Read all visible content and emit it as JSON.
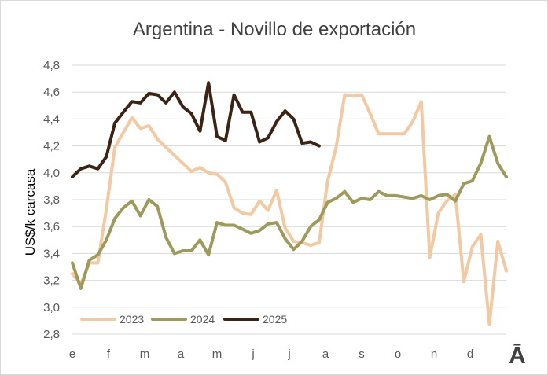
{
  "chart_data": {
    "type": "line",
    "title": "Argentina - Novillo de exportación",
    "ylabel": "US$/k carcasa",
    "xlabel": "",
    "ylim": [
      2.8,
      4.8
    ],
    "yticks": [
      "2,8",
      "3,0",
      "3,2",
      "3,4",
      "3,6",
      "3,8",
      "4,0",
      "4,2",
      "4,4",
      "4,6",
      "4,8"
    ],
    "month_labels": [
      "e",
      "f",
      "m",
      "a",
      "m",
      "j",
      "j",
      "a",
      "s",
      "o",
      "n",
      "d"
    ],
    "weeks": 52,
    "grid": "horizontal",
    "legend_position": "bottom-left",
    "series": [
      {
        "name": "2023",
        "color": "#f2c9a2",
        "values": [
          3.25,
          3.17,
          3.33,
          3.33,
          3.73,
          4.19,
          4.3,
          4.41,
          4.33,
          4.35,
          4.25,
          4.19,
          4.13,
          4.07,
          4.01,
          4.04,
          4.0,
          3.99,
          3.93,
          3.74,
          3.7,
          3.69,
          3.79,
          3.72,
          3.87,
          3.59,
          3.49,
          3.48,
          3.46,
          3.48,
          3.94,
          4.19,
          4.58,
          4.57,
          4.58,
          4.44,
          4.29,
          4.29,
          4.29,
          4.29,
          4.38,
          4.53,
          3.37,
          3.7,
          3.79,
          3.84,
          3.19,
          3.45,
          3.54,
          2.87,
          3.49,
          3.27
        ]
      },
      {
        "name": "2024",
        "color": "#9d9a5c",
        "values": [
          3.33,
          3.14,
          3.35,
          3.39,
          3.5,
          3.66,
          3.74,
          3.79,
          3.68,
          3.8,
          3.75,
          3.52,
          3.4,
          3.42,
          3.42,
          3.5,
          3.39,
          3.63,
          3.61,
          3.61,
          3.58,
          3.55,
          3.57,
          3.62,
          3.63,
          3.51,
          3.43,
          3.49,
          3.6,
          3.65,
          3.78,
          3.81,
          3.86,
          3.78,
          3.81,
          3.8,
          3.86,
          3.83,
          3.83,
          3.82,
          3.81,
          3.83,
          3.8,
          3.83,
          3.84,
          3.79,
          3.92,
          3.94,
          4.07,
          4.27,
          4.07,
          3.97
        ]
      },
      {
        "name": "2025",
        "color": "#3b2416",
        "values": [
          3.97,
          4.03,
          4.05,
          4.03,
          4.12,
          4.37,
          4.45,
          4.53,
          4.52,
          4.59,
          4.58,
          4.52,
          4.6,
          4.49,
          4.44,
          4.31,
          4.67,
          4.27,
          4.24,
          4.58,
          4.45,
          4.45,
          4.23,
          4.26,
          4.38,
          4.46,
          4.4,
          4.22,
          4.23,
          4.2
        ]
      }
    ]
  },
  "logo": {
    "text": "Ā"
  }
}
